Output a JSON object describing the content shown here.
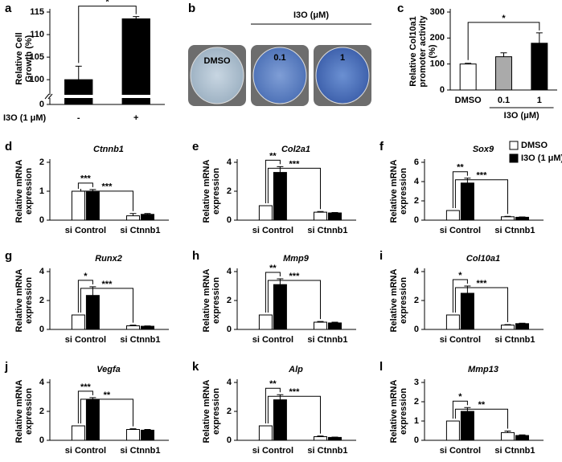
{
  "legend": {
    "series": [
      {
        "name": "DMSO",
        "color": "#ffffff"
      },
      {
        "name": "I3O (1 μM)",
        "color": "#000000"
      }
    ]
  },
  "chart_data": [
    {
      "type": "bar",
      "label": "a",
      "ylabel": "Relative Cell Growth (%)",
      "xlabel": "I3O (1 μM)",
      "categories": [
        "-",
        "+"
      ],
      "values": [
        100,
        113.5
      ],
      "errors": [
        3,
        0.5
      ],
      "color": "#000000",
      "colors": [
        "#ffffff",
        "#000000"
      ],
      "ylim": [
        0,
        115
      ],
      "axis_break": [
        1,
        97
      ],
      "yticks": [
        0,
        100,
        105,
        110,
        115
      ],
      "annotations": [
        "*"
      ]
    },
    {
      "type": "image",
      "label": "b",
      "labels": [
        "DMSO",
        "0.1",
        "1"
      ],
      "group_label": "I3O (μM)"
    },
    {
      "type": "bar",
      "label": "c",
      "ylabel": "Relative Col10a1 promoter activity (%)",
      "categories": [
        "DMSO",
        "0.1",
        "1"
      ],
      "group_label": "I3O (μM)",
      "values": [
        100,
        128,
        180
      ],
      "errors": [
        3,
        15,
        40
      ],
      "colors": [
        "#ffffff",
        "#aaaaaa",
        "#000000"
      ],
      "ylim": [
        0,
        300
      ],
      "yticks": [
        0,
        100,
        200,
        300
      ],
      "annotations": [
        "*"
      ]
    },
    {
      "type": "bar",
      "label": "d",
      "title": "Ctnnb1",
      "ylabel": "Relative mRNA expression",
      "categories": [
        "si Control",
        "si Ctnnb1"
      ],
      "series": [
        {
          "values": [
            1.0,
            0.15
          ],
          "errors": [
            0,
            0.08
          ]
        },
        {
          "values": [
            0.98,
            0.2
          ],
          "errors": [
            0.08,
            0.03
          ]
        }
      ],
      "ylim": [
        0,
        2
      ],
      "yticks": [
        0,
        1,
        2
      ],
      "annotations": [
        "***",
        "***"
      ]
    },
    {
      "type": "bar",
      "label": "e",
      "title": "Col2a1",
      "ylabel": "Relative mRNA expression",
      "categories": [
        "si Control",
        "si Ctnnb1"
      ],
      "series": [
        {
          "values": [
            1.0,
            0.55
          ],
          "errors": [
            0,
            0.05
          ]
        },
        {
          "values": [
            3.3,
            0.5
          ],
          "errors": [
            0.4,
            0.03
          ]
        }
      ],
      "ylim": [
        0,
        4
      ],
      "yticks": [
        0,
        2,
        4
      ],
      "annotations": [
        "**",
        "***"
      ]
    },
    {
      "type": "bar",
      "label": "f",
      "title": "Sox9",
      "ylabel": "Relative mRNA expression",
      "legend": true,
      "categories": [
        "si Control",
        "si Ctnnb1"
      ],
      "series": [
        {
          "values": [
            1.0,
            0.35
          ],
          "errors": [
            0,
            0.05
          ]
        },
        {
          "values": [
            3.85,
            0.3
          ],
          "errors": [
            0.5,
            0.03
          ]
        }
      ],
      "ylim": [
        0,
        6
      ],
      "yticks": [
        0,
        2,
        4,
        6
      ],
      "annotations": [
        "**",
        "***"
      ]
    },
    {
      "type": "bar",
      "label": "g",
      "title": "Runx2",
      "ylabel": "Relative mRNA expression",
      "categories": [
        "si Control",
        "si Ctnnb1"
      ],
      "series": [
        {
          "values": [
            1.0,
            0.25
          ],
          "errors": [
            0,
            0.05
          ]
        },
        {
          "values": [
            2.35,
            0.22
          ],
          "errors": [
            0.6,
            0.02
          ]
        }
      ],
      "ylim": [
        0,
        4
      ],
      "yticks": [
        0,
        2,
        4
      ],
      "annotations": [
        "*",
        "***"
      ]
    },
    {
      "type": "bar",
      "label": "h",
      "title": "Mmp9",
      "ylabel": "Relative mRNA expression",
      "categories": [
        "si Control",
        "si Ctnnb1"
      ],
      "series": [
        {
          "values": [
            1.0,
            0.5
          ],
          "errors": [
            0,
            0.05
          ]
        },
        {
          "values": [
            3.1,
            0.45
          ],
          "errors": [
            0.4,
            0.05
          ]
        }
      ],
      "ylim": [
        0,
        4
      ],
      "yticks": [
        0,
        2,
        4
      ],
      "annotations": [
        "**",
        "***"
      ]
    },
    {
      "type": "bar",
      "label": "i",
      "title": "Col10a1",
      "ylabel": "Relative mRNA expression",
      "categories": [
        "si Control",
        "si Ctnnb1"
      ],
      "series": [
        {
          "values": [
            1.0,
            0.3
          ],
          "errors": [
            0,
            0.03
          ]
        },
        {
          "values": [
            2.5,
            0.4
          ],
          "errors": [
            0.5,
            0.03
          ]
        }
      ],
      "ylim": [
        0,
        4
      ],
      "yticks": [
        0,
        2,
        4
      ],
      "annotations": [
        "*",
        "***"
      ]
    },
    {
      "type": "bar",
      "label": "j",
      "title": "Vegfa",
      "ylabel": "Relative mRNA expression",
      "categories": [
        "si Control",
        "si Ctnnb1"
      ],
      "series": [
        {
          "values": [
            1.0,
            0.75
          ],
          "errors": [
            0,
            0.05
          ]
        },
        {
          "values": [
            2.8,
            0.7
          ],
          "errors": [
            0.15,
            0.05
          ]
        }
      ],
      "ylim": [
        0,
        4
      ],
      "yticks": [
        0,
        2,
        4
      ],
      "annotations": [
        "***",
        "**"
      ]
    },
    {
      "type": "bar",
      "label": "k",
      "title": "Alp",
      "ylabel": "Relative mRNA expression",
      "categories": [
        "si Control",
        "si Ctnnb1"
      ],
      "series": [
        {
          "values": [
            1.0,
            0.25
          ],
          "errors": [
            0,
            0.05
          ]
        },
        {
          "values": [
            2.8,
            0.2
          ],
          "errors": [
            0.35,
            0.02
          ]
        }
      ],
      "ylim": [
        0,
        4
      ],
      "yticks": [
        0,
        2,
        4
      ],
      "annotations": [
        "**",
        "***"
      ]
    },
    {
      "type": "bar",
      "label": "l",
      "title": "Mmp13",
      "ylabel": "Relative mRNA expression",
      "categories": [
        "si Control",
        "si Ctnnb1"
      ],
      "series": [
        {
          "values": [
            1.0,
            0.4
          ],
          "errors": [
            0,
            0.08
          ]
        },
        {
          "values": [
            1.5,
            0.25
          ],
          "errors": [
            0.2,
            0.03
          ]
        }
      ],
      "ylim": [
        0,
        3
      ],
      "yticks": [
        0,
        1,
        2,
        3
      ],
      "annotations": [
        "*",
        "**"
      ]
    }
  ]
}
